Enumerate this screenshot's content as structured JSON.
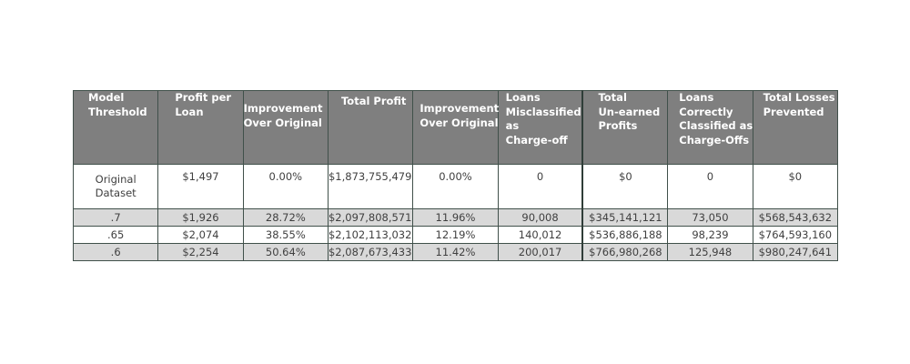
{
  "table": {
    "headers": [
      {
        "lines": [
          "Model",
          "Threshold"
        ]
      },
      {
        "lines": [
          "Profit per",
          "Loan"
        ]
      },
      {
        "lines": [
          "Improvement",
          "Over Original"
        ]
      },
      {
        "lines": [
          "Total Profit"
        ]
      },
      {
        "lines": [
          "Improvement",
          "Over Original"
        ]
      },
      {
        "lines": [
          "Loans",
          "Misclassified",
          "as",
          "Charge-off"
        ]
      },
      {
        "lines": [
          "Total",
          "Un-earned",
          "Profits"
        ]
      },
      {
        "lines": [
          "Loans",
          "Correctly",
          "Classified as",
          "Charge-Offs"
        ]
      },
      {
        "lines": [
          "Total Losses",
          "Prevented"
        ]
      }
    ],
    "first_row": {
      "threshold_lines": [
        "Original",
        "Dataset"
      ],
      "cells": [
        "$1,497",
        "0.00%",
        "$1,873,755,479",
        "0.00%",
        "0",
        "$0",
        "0",
        "$0"
      ]
    },
    "rows": [
      [
        ".7",
        "$1,926",
        "28.72%",
        "$2,097,808,571",
        "11.96%",
        "90,008",
        "$345,141,121",
        "73,050",
        "$568,543,632"
      ],
      [
        ".65",
        "$2,074",
        "38.55%",
        "$2,102,113,032",
        "12.19%",
        "140,012",
        "$536,886,188",
        "98,239",
        "$764,593,160"
      ],
      [
        ".6",
        "$2,254",
        "50.64%",
        "$2,087,673,433",
        "11.42%",
        "200,017",
        "$766,980,268",
        "125,948",
        "$980,247,641"
      ]
    ]
  },
  "colors": {
    "header_bg": "#7f7f7f",
    "header_text": "#ffffff",
    "shaded_row_bg": "#d9d9d9",
    "border": "#40504a"
  }
}
